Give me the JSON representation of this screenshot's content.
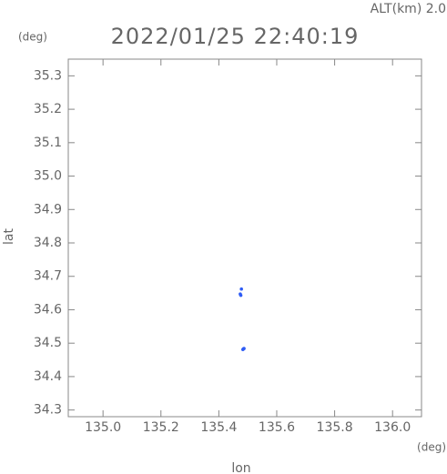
{
  "chart_data": {
    "type": "scatter",
    "title": "2022/01/25 22:40:19",
    "altitude_label": "ALT(km) 2.0",
    "y_unit": "(deg)",
    "x_unit": "(deg)",
    "xlabel": "lon",
    "ylabel": "lat",
    "series": [
      {
        "color": "#2f5df5",
        "x": [
          135.476,
          135.478,
          135.474,
          135.485,
          135.487,
          135.483
        ],
        "values": [
          34.643,
          34.662,
          34.647,
          34.483,
          34.484,
          34.481
        ]
      }
    ],
    "xlim": [
      134.88,
      136.1
    ],
    "ylim": [
      34.28,
      35.35
    ],
    "xticks": [
      {
        "value": 135.0,
        "label": "135.0"
      },
      135.2,
      135.4,
      135.6,
      135.8,
      {
        "value": 136.0,
        "label": "136.0"
      }
    ],
    "yticks": [
      34.3,
      34.4,
      34.5,
      34.6,
      34.7,
      34.8,
      34.9,
      {
        "value": 35.0,
        "label": "35.0"
      },
      35.1,
      35.2,
      35.3
    ]
  }
}
